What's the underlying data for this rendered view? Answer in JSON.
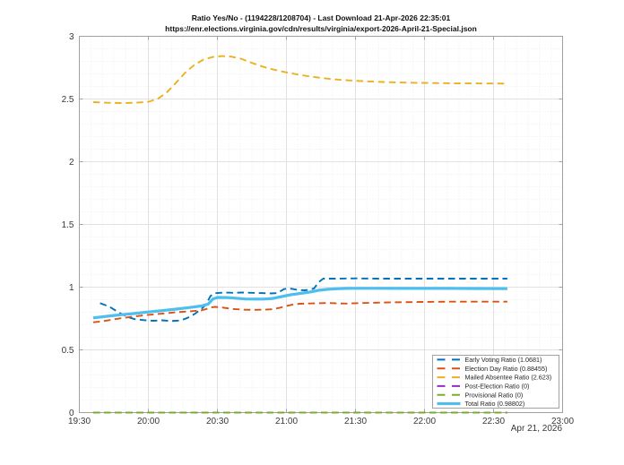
{
  "chart_data": {
    "type": "line",
    "title": "Ratio Yes/No - (1194228/1208704) - Last Download 21-Apr-2026 22:35:01",
    "subtitle": "https://enr.elections.virginia.gov/cdn/results/virginia/export-2026-April-21-Special.json",
    "x_date_label": "Apr 21, 2026",
    "x_range_minutes": [
      0,
      210
    ],
    "ylim": [
      0,
      3
    ],
    "x_ticks": [
      {
        "minutes": 0,
        "label": "19:30"
      },
      {
        "minutes": 30,
        "label": "20:00"
      },
      {
        "minutes": 60,
        "label": "20:30"
      },
      {
        "minutes": 90,
        "label": "21:00"
      },
      {
        "minutes": 120,
        "label": "21:30"
      },
      {
        "minutes": 150,
        "label": "22:00"
      },
      {
        "minutes": 180,
        "label": "22:30"
      },
      {
        "minutes": 210,
        "label": "23:00"
      }
    ],
    "y_ticks": [
      {
        "value": 0,
        "label": "0"
      },
      {
        "value": 0.5,
        "label": "0.5"
      },
      {
        "value": 1,
        "label": "1"
      },
      {
        "value": 1.5,
        "label": "1.5"
      },
      {
        "value": 2,
        "label": "2"
      },
      {
        "value": 2.5,
        "label": "2.5"
      },
      {
        "value": 3,
        "label": "3"
      }
    ],
    "grid": {
      "major_color": "#e2e2e2",
      "minor_color": "#eeeeee",
      "minor_x_step_minutes": 5,
      "minor_y_step": 0.1,
      "axis_color": "#a0a0a0",
      "tick_label_color": "#383838"
    },
    "legend_position": "bottom-right",
    "series": [
      {
        "name": "Early Voting Ratio (1.0681)",
        "final_value": 1.0681,
        "color": "#0072BD",
        "line_style": "dashed",
        "line_width": 1.9,
        "points": [
          [
            9,
            0.872
          ],
          [
            13,
            0.845
          ],
          [
            17,
            0.8
          ],
          [
            21,
            0.762
          ],
          [
            24,
            0.745
          ],
          [
            28,
            0.737
          ],
          [
            32,
            0.732
          ],
          [
            36,
            0.736
          ],
          [
            40,
            0.73
          ],
          [
            44,
            0.734
          ],
          [
            47,
            0.755
          ],
          [
            50,
            0.785
          ],
          [
            53,
            0.825
          ],
          [
            55,
            0.86
          ],
          [
            57,
            0.93
          ],
          [
            59,
            0.952
          ],
          [
            63,
            0.957
          ],
          [
            67,
            0.955
          ],
          [
            71,
            0.957
          ],
          [
            75,
            0.955
          ],
          [
            79,
            0.953
          ],
          [
            83,
            0.95
          ],
          [
            86,
            0.952
          ],
          [
            89,
            0.985
          ],
          [
            92,
            0.988
          ],
          [
            95,
            0.978
          ],
          [
            98,
            0.975
          ],
          [
            100,
            0.98
          ],
          [
            102,
            0.99
          ],
          [
            104,
            1.04
          ],
          [
            106,
            1.068
          ],
          [
            112,
            1.068
          ],
          [
            120,
            1.07
          ],
          [
            130,
            1.068
          ],
          [
            140,
            1.0681
          ],
          [
            155,
            1.0681
          ],
          [
            170,
            1.0681
          ],
          [
            186,
            1.0681
          ]
        ]
      },
      {
        "name": "Election Day Ratio (0.88455)",
        "final_value": 0.88455,
        "color": "#D95319",
        "line_style": "dashed",
        "line_width": 1.9,
        "points": [
          [
            6,
            0.72
          ],
          [
            10,
            0.728
          ],
          [
            14,
            0.74
          ],
          [
            18,
            0.752
          ],
          [
            22,
            0.762
          ],
          [
            26,
            0.771
          ],
          [
            30,
            0.779
          ],
          [
            34,
            0.786
          ],
          [
            38,
            0.793
          ],
          [
            42,
            0.8
          ],
          [
            46,
            0.805
          ],
          [
            50,
            0.81
          ],
          [
            53,
            0.815
          ],
          [
            55,
            0.825
          ],
          [
            57,
            0.838
          ],
          [
            59,
            0.843
          ],
          [
            62,
            0.838
          ],
          [
            65,
            0.83
          ],
          [
            68,
            0.824
          ],
          [
            72,
            0.82
          ],
          [
            76,
            0.819
          ],
          [
            80,
            0.82
          ],
          [
            84,
            0.824
          ],
          [
            87,
            0.835
          ],
          [
            90,
            0.85
          ],
          [
            93,
            0.862
          ],
          [
            96,
            0.868
          ],
          [
            100,
            0.87
          ],
          [
            104,
            0.872
          ],
          [
            108,
            0.874
          ],
          [
            112,
            0.871
          ],
          [
            116,
            0.869
          ],
          [
            120,
            0.872
          ],
          [
            128,
            0.876
          ],
          [
            136,
            0.879
          ],
          [
            144,
            0.881
          ],
          [
            152,
            0.883
          ],
          [
            162,
            0.884
          ],
          [
            172,
            0.8845
          ],
          [
            186,
            0.88455
          ]
        ]
      },
      {
        "name": "Mailed Absentee Ratio (2.623)",
        "final_value": 2.623,
        "color": "#EDB120",
        "line_style": "dashed",
        "line_width": 1.9,
        "points": [
          [
            6,
            2.475
          ],
          [
            12,
            2.47
          ],
          [
            18,
            2.468
          ],
          [
            24,
            2.47
          ],
          [
            30,
            2.478
          ],
          [
            34,
            2.5
          ],
          [
            38,
            2.552
          ],
          [
            42,
            2.63
          ],
          [
            46,
            2.71
          ],
          [
            50,
            2.772
          ],
          [
            54,
            2.815
          ],
          [
            58,
            2.835
          ],
          [
            62,
            2.842
          ],
          [
            66,
            2.838
          ],
          [
            70,
            2.822
          ],
          [
            74,
            2.795
          ],
          [
            78,
            2.768
          ],
          [
            82,
            2.745
          ],
          [
            86,
            2.728
          ],
          [
            90,
            2.712
          ],
          [
            95,
            2.695
          ],
          [
            100,
            2.68
          ],
          [
            105,
            2.668
          ],
          [
            110,
            2.658
          ],
          [
            115,
            2.651
          ],
          [
            120,
            2.645
          ],
          [
            126,
            2.64
          ],
          [
            132,
            2.636
          ],
          [
            138,
            2.632
          ],
          [
            146,
            2.629
          ],
          [
            154,
            2.627
          ],
          [
            162,
            2.625
          ],
          [
            172,
            2.624
          ],
          [
            186,
            2.623
          ]
        ]
      },
      {
        "name": "Post-Election Ratio (0)",
        "final_value": 0,
        "color": "#9030C0",
        "line_style": "dashed",
        "line_width": 1.9,
        "points": [
          [
            6,
            0
          ],
          [
            186,
            0
          ]
        ]
      },
      {
        "name": "Provisional Ratio (0)",
        "final_value": 0,
        "color": "#77AC30",
        "line_style": "dashed",
        "line_width": 1.9,
        "points": [
          [
            6,
            0
          ],
          [
            186,
            0
          ]
        ]
      },
      {
        "name": "Total Ratio (0.98802)",
        "final_value": 0.98802,
        "color": "#4DBEEE",
        "line_style": "solid",
        "line_width": 3.2,
        "points": [
          [
            6,
            0.755
          ],
          [
            12,
            0.768
          ],
          [
            18,
            0.78
          ],
          [
            24,
            0.79
          ],
          [
            30,
            0.802
          ],
          [
            36,
            0.813
          ],
          [
            42,
            0.825
          ],
          [
            48,
            0.838
          ],
          [
            53,
            0.85
          ],
          [
            56,
            0.865
          ],
          [
            58,
            0.905
          ],
          [
            60,
            0.918
          ],
          [
            64,
            0.917
          ],
          [
            68,
            0.912
          ],
          [
            72,
            0.906
          ],
          [
            76,
            0.905
          ],
          [
            80,
            0.905
          ],
          [
            84,
            0.91
          ],
          [
            88,
            0.925
          ],
          [
            92,
            0.94
          ],
          [
            96,
            0.95
          ],
          [
            100,
            0.96
          ],
          [
            104,
            0.975
          ],
          [
            108,
            0.983
          ],
          [
            112,
            0.987
          ],
          [
            116,
            0.99
          ],
          [
            120,
            0.991
          ],
          [
            130,
            0.991
          ],
          [
            140,
            0.99
          ],
          [
            150,
            0.99
          ],
          [
            160,
            0.99
          ],
          [
            170,
            0.989
          ],
          [
            186,
            0.98802
          ]
        ]
      }
    ]
  }
}
